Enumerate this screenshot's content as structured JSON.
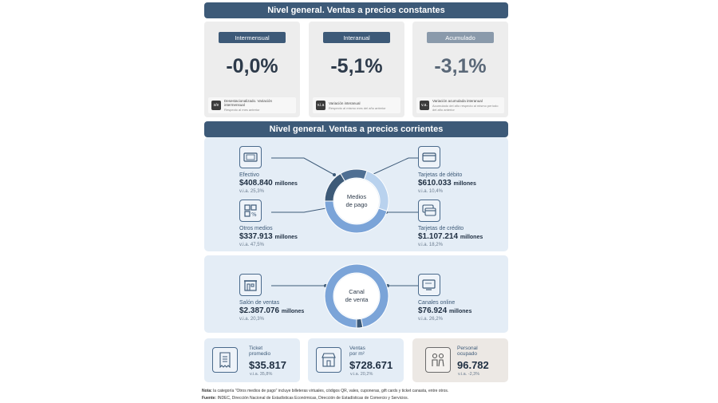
{
  "section1": {
    "title": "Nivel general. Ventas a precios constantes",
    "cards": [
      {
        "pill": "Intermensual",
        "value": "-0,0%",
        "pill_color": "#3d5a78",
        "icon_text": "s/e",
        "note_title": "Desestacionalizado. Variación intermensual",
        "note_sub": "Respecto al mes anterior"
      },
      {
        "pill": "Interanual",
        "value": "-5,1%",
        "pill_color": "#3d5a78",
        "icon_text": "v.i.a",
        "note_title": "Variación interanual",
        "note_sub": "Respecto al mismo mes del año anterior"
      },
      {
        "pill": "Acumulado",
        "value": "-3,1%",
        "pill_color": "#8a9aab",
        "icon_text": "v.a.",
        "note_title": "Variación acumulada interanual",
        "note_sub": "Acumulado del año respecto al mismo período del año anterior"
      }
    ]
  },
  "section2": {
    "title": "Nivel general. Ventas a precios corrientes",
    "medios": {
      "center_line1": "Medios",
      "center_line2": "de pago",
      "efectivo": {
        "label": "Efectivo",
        "amount": "$408.840",
        "unit": "millones",
        "via": "v.i.a. 25,3%"
      },
      "otros": {
        "label": "Otros medios",
        "amount": "$337.913",
        "unit": "millones",
        "via": "v.i.a. 47,5%"
      },
      "debito": {
        "label": "Tarjetas de débito",
        "amount": "$610.033",
        "unit": "millones",
        "via": "v.i.a. 10,4%"
      },
      "credito": {
        "label": "Tarjetas de crédito",
        "amount": "$1.107.214",
        "unit": "millones",
        "via": "v.i.a. 18,2%"
      }
    },
    "canal": {
      "center_line1": "Canal",
      "center_line2": "de venta",
      "salon": {
        "label": "Salón de ventas",
        "amount": "$2.387.076",
        "unit": "millones",
        "via": "v.i.a. 20,3%"
      },
      "online": {
        "label": "Canales online",
        "amount": "$76.924",
        "unit": "millones",
        "via": "v.i.a. 26,2%"
      }
    }
  },
  "bottom": {
    "ticket": {
      "label_line1": "Ticket",
      "label_line2": "promedio",
      "value": "$35.817",
      "via": "v.i.a. 35,8%"
    },
    "ventas_m2": {
      "label_line1": "Ventas",
      "label_line2": "por m²",
      "value": "$728.671",
      "via": "v.i.a. 20,2%"
    },
    "personal": {
      "label_line1": "Personal",
      "label_line2": "ocupado",
      "value": "96.782",
      "via": "v.i.a. -2,3%"
    }
  },
  "footer": {
    "nota_label": "Nota:",
    "nota_text": "la categoría \"Otros medios de pago\" incluye billeteras virtuales, códigos QR, vales, cuponeras, gift cards y ticket canasta, entre otros.",
    "fuente_label": "Fuente:",
    "fuente_text": "INDEC, Dirección Nacional de Estadísticas Económicas, Dirección de Estadísticas de Comercio y Servicios."
  },
  "colors": {
    "dark": "#3d5a78",
    "mid": "#7ba4d8",
    "light": "#b9d2ee",
    "panel": "#e4edf6",
    "card_gray": "#ededed",
    "card_beige": "#ece8e4"
  },
  "chart_data": [
    {
      "type": "pie",
      "title": "Medios de pago",
      "categories": [
        "Efectivo",
        "Otros medios",
        "Tarjetas de débito",
        "Tarjetas de crédito"
      ],
      "values": [
        408840,
        337913,
        610033,
        1107214
      ],
      "unit": "millones"
    },
    {
      "type": "pie",
      "title": "Canal de venta",
      "categories": [
        "Salón de ventas",
        "Canales online"
      ],
      "values": [
        2387076,
        76924
      ],
      "unit": "millones"
    }
  ]
}
